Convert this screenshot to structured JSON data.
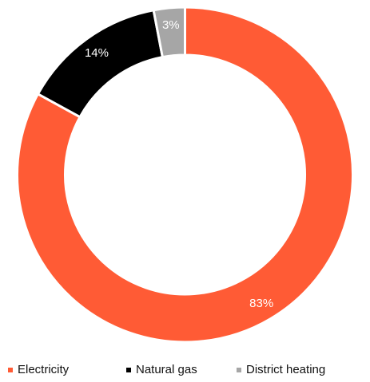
{
  "chart_data": {
    "type": "pie",
    "variant": "donut",
    "categories": [
      "Electricity",
      "Natural gas",
      "District heating"
    ],
    "values": [
      83,
      14,
      3
    ],
    "value_labels": [
      "83%",
      "14%",
      "3%"
    ],
    "colors": [
      "#FF5B35",
      "#000000",
      "#A6A6A6"
    ],
    "legend": "bottom"
  }
}
